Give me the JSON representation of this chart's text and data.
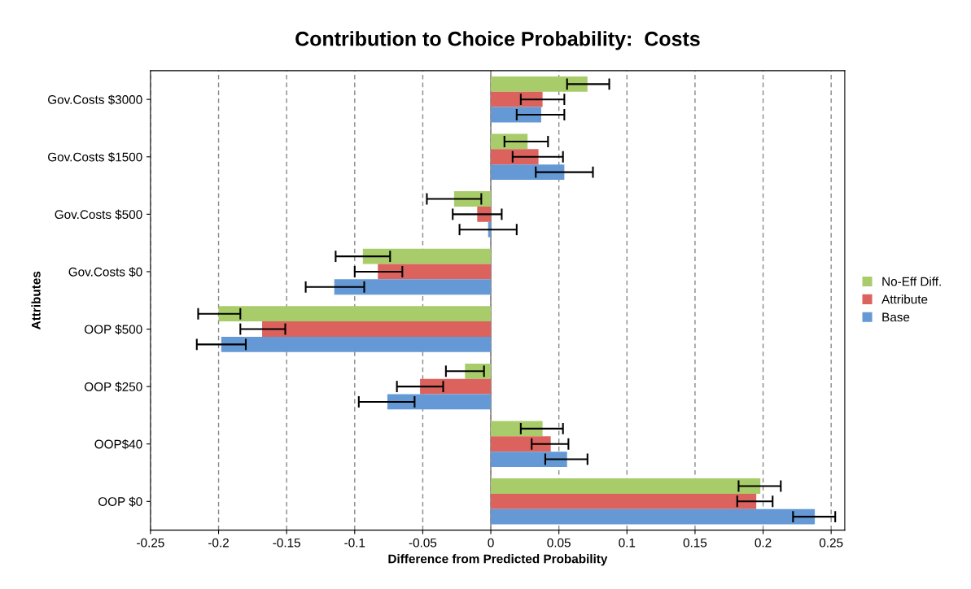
{
  "chart_data": {
    "type": "bar",
    "orientation": "horizontal",
    "title": "Contribution to Choice Probability:  Costs",
    "xlabel": "Difference from Predicted Probability",
    "ylabel": "Attributes",
    "categories": [
      "Gov.Costs $3000",
      "Gov.Costs $1500",
      "Gov.Costs $500",
      "Gov.Costs $0",
      "OOP $500",
      "OOP $250",
      "OOP$40",
      "OOP $0"
    ],
    "series": [
      {
        "name": "No-Eff Diff.",
        "color": "#a9cc6a",
        "values": [
          0.071,
          0.027,
          -0.027,
          -0.094,
          -0.2,
          -0.019,
          0.038,
          0.198
        ],
        "errors": [
          [
            0.056,
            0.087
          ],
          [
            0.01,
            0.042
          ],
          [
            -0.047,
            -0.007
          ],
          [
            -0.114,
            -0.074
          ],
          [
            -0.215,
            -0.184
          ],
          [
            -0.033,
            -0.005
          ],
          [
            0.022,
            0.053
          ],
          [
            0.182,
            0.213
          ]
        ]
      },
      {
        "name": "Attribute",
        "color": "#dc625e",
        "values": [
          0.038,
          0.035,
          -0.01,
          -0.083,
          -0.168,
          -0.052,
          0.044,
          0.195
        ],
        "errors": [
          [
            0.022,
            0.054
          ],
          [
            0.016,
            0.053
          ],
          [
            -0.028,
            0.008
          ],
          [
            -0.1,
            -0.065
          ],
          [
            -0.184,
            -0.151
          ],
          [
            -0.069,
            -0.035
          ],
          [
            0.03,
            0.057
          ],
          [
            0.181,
            0.207
          ]
        ]
      },
      {
        "name": "Base",
        "color": "#6499d6",
        "values": [
          0.037,
          0.054,
          -0.002,
          -0.115,
          -0.198,
          -0.076,
          0.056,
          0.238
        ],
        "errors": [
          [
            0.019,
            0.054
          ],
          [
            0.033,
            0.075
          ],
          [
            -0.023,
            0.019
          ],
          [
            -0.136,
            -0.093
          ],
          [
            -0.216,
            -0.18
          ],
          [
            -0.097,
            -0.056
          ],
          [
            0.04,
            0.071
          ],
          [
            0.222,
            0.253
          ]
        ]
      }
    ],
    "xlim": [
      -0.25,
      0.26
    ],
    "xticks": [
      -0.25,
      -0.2,
      -0.15,
      -0.1,
      -0.05,
      0,
      0.05,
      0.1,
      0.15,
      0.2,
      0.25
    ],
    "ref_lines": [
      {
        "axis": "x",
        "value": 0,
        "color": "#888888",
        "line_style": "solid"
      }
    ],
    "grid": "x",
    "legend": "right"
  }
}
